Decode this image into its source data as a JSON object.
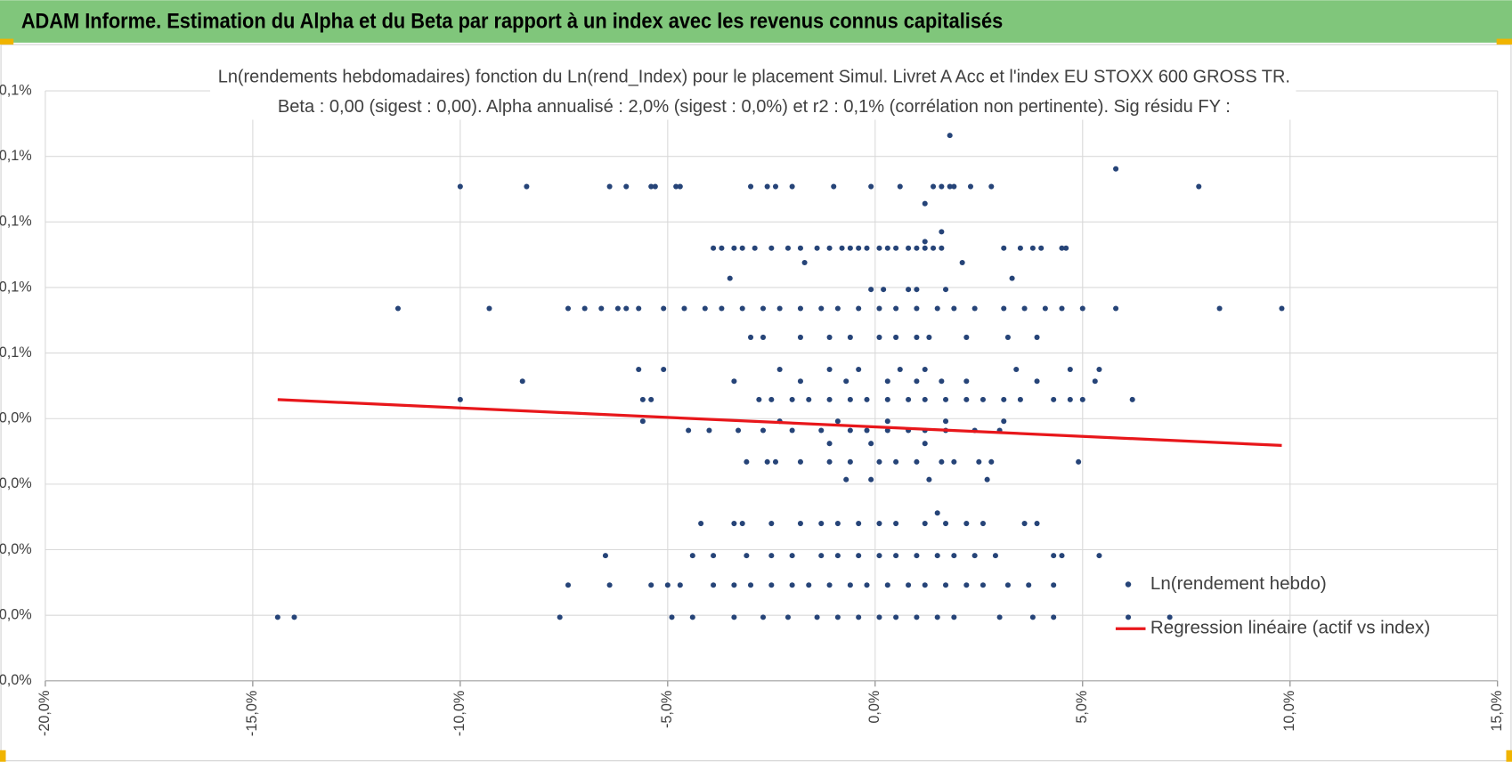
{
  "header": {
    "title": "ADAM Informe. Estimation du Alpha et du Beta par rapport à un index avec les revenus connus capitalisés"
  },
  "chart_data": {
    "type": "scatter",
    "title": "Ln(rendements hebdomadaires) fonction du Ln(rend_Index) pour le placement Simul. Livret A Acc et l'index EU STOXX 600 GROSS TR.",
    "subtitle": "Beta : 0,00 (sigest : 0,00). Alpha annualisé : 2,0% (sigest : 0,0%) et r2 : 0,1% (corrélation non pertinente). Sig résidu FY :",
    "xlim": [
      -20,
      15
    ],
    "xticks": [
      {
        "value": -20,
        "label": "-20,0%"
      },
      {
        "value": -15,
        "label": "-15,0%"
      },
      {
        "value": -10,
        "label": "-10,0%"
      },
      {
        "value": -5,
        "label": "-5,0%"
      },
      {
        "value": 0,
        "label": "0,0%"
      },
      {
        "value": 5,
        "label": "5,0%"
      },
      {
        "value": 10,
        "label": "10,0%"
      },
      {
        "value": 15,
        "label": "15,0%"
      }
    ],
    "ylim": [
      0,
      0.09
    ],
    "yticks": [
      {
        "value": 0,
        "label": "0,0%"
      },
      {
        "value": 0.01,
        "label": "0,0%"
      },
      {
        "value": 0.02,
        "label": "0,0%"
      },
      {
        "value": 0.03,
        "label": "0,0%"
      },
      {
        "value": 0.04,
        "label": "0,0%"
      },
      {
        "value": 0.05,
        "label": "0,1%"
      },
      {
        "value": 0.06,
        "label": "0,1%"
      },
      {
        "value": 0.07,
        "label": "0,1%"
      },
      {
        "value": 0.08,
        "label": "0,1%"
      },
      {
        "value": 0.09,
        "label": "0,1%"
      }
    ],
    "grid": true,
    "legend": "lower right",
    "series": [
      {
        "name": "Ln(rendement hebdo)",
        "color": "#264478",
        "mode": "markers",
        "x": [
          1.8,
          5.8,
          -10.0,
          -8.4,
          -6.4,
          -6.0,
          -5.4,
          -5.3,
          -4.8,
          -4.7,
          -3.0,
          -2.6,
          -2.4,
          -2.0,
          -1.0,
          -0.1,
          0.6,
          1.4,
          1.6,
          1.8,
          1.9,
          2.3,
          2.8,
          7.8,
          1.2,
          1.6,
          1.2,
          -3.9,
          -3.7,
          -3.4,
          -3.2,
          -2.9,
          -2.5,
          -2.1,
          -1.8,
          -1.4,
          -1.1,
          -0.8,
          -0.6,
          -0.4,
          -0.2,
          0.1,
          0.3,
          0.5,
          0.8,
          1.0,
          1.2,
          1.4,
          1.6,
          3.1,
          3.5,
          3.8,
          4.0,
          4.5,
          4.6,
          -1.7,
          2.1,
          -3.5,
          3.3,
          -0.1,
          0.2,
          0.8,
          1.0,
          1.7,
          -11.5,
          -9.3,
          -7.4,
          -7.0,
          -6.6,
          -6.2,
          -6.0,
          -5.7,
          -5.1,
          -4.6,
          -4.1,
          -3.7,
          -3.2,
          -2.7,
          -2.3,
          -1.8,
          -1.3,
          -0.9,
          -0.4,
          0.1,
          0.5,
          1.0,
          1.5,
          1.9,
          2.4,
          3.1,
          3.6,
          4.1,
          4.5,
          5.0,
          5.8,
          8.3,
          9.8,
          -3.0,
          -2.7,
          -1.8,
          -1.1,
          -0.6,
          0.1,
          0.5,
          1.0,
          1.3,
          2.2,
          3.2,
          3.9,
          -5.7,
          -5.1,
          -2.3,
          -1.1,
          -0.4,
          0.6,
          1.2,
          3.4,
          4.7,
          5.4,
          -8.5,
          -3.4,
          -1.8,
          -0.7,
          0.3,
          1.0,
          1.6,
          2.2,
          3.9,
          5.3,
          -10.0,
          -5.6,
          -5.4,
          -2.8,
          -2.5,
          -2.0,
          -1.6,
          -1.1,
          -0.6,
          -0.2,
          0.3,
          0.8,
          1.2,
          1.7,
          2.2,
          2.6,
          3.1,
          3.5,
          4.3,
          4.7,
          5.0,
          6.2,
          -5.6,
          -2.3,
          -0.9,
          0.3,
          1.7,
          3.1,
          -4.5,
          -4.0,
          -3.3,
          -2.7,
          -2.0,
          -1.3,
          -0.6,
          -0.2,
          0.3,
          0.8,
          1.2,
          1.7,
          2.4,
          3.0,
          -1.1,
          -0.1,
          1.2,
          -3.1,
          -2.6,
          -2.4,
          -1.8,
          -1.1,
          -0.6,
          0.1,
          0.5,
          1.0,
          1.6,
          1.9,
          2.5,
          2.8,
          4.9,
          -0.7,
          -0.1,
          1.3,
          2.7,
          1.5,
          -4.2,
          -3.4,
          -3.2,
          -2.5,
          -1.8,
          -1.3,
          -0.9,
          -0.4,
          0.1,
          0.5,
          1.2,
          1.7,
          2.2,
          2.6,
          3.6,
          3.9,
          -6.5,
          -4.4,
          -3.9,
          -3.1,
          -2.5,
          -2.0,
          -1.3,
          -0.9,
          -0.4,
          0.1,
          0.5,
          1.0,
          1.5,
          1.9,
          2.4,
          2.9,
          4.3,
          4.5,
          5.4,
          -7.4,
          -6.4,
          -5.4,
          -5.0,
          -4.7,
          -3.9,
          -3.4,
          -3.0,
          -2.5,
          -2.0,
          -1.6,
          -1.1,
          -0.6,
          -0.2,
          0.3,
          0.8,
          1.2,
          1.7,
          2.2,
          2.6,
          3.2,
          3.7,
          4.3,
          -14.4,
          -14.0,
          -7.6,
          -4.9,
          -4.4,
          -3.4,
          -2.7,
          -2.1,
          -1.4,
          -0.9,
          -0.4,
          0.1,
          0.5,
          1.0,
          1.5,
          1.9,
          3.0,
          3.8,
          4.3,
          6.1,
          7.1
        ],
        "values": [
          0.0832,
          0.0781,
          0.0754,
          0.0754,
          0.0754,
          0.0754,
          0.0754,
          0.0754,
          0.0754,
          0.0754,
          0.0754,
          0.0754,
          0.0754,
          0.0754,
          0.0754,
          0.0754,
          0.0754,
          0.0754,
          0.0754,
          0.0754,
          0.0754,
          0.0754,
          0.0754,
          0.0754,
          0.0728,
          0.0685,
          0.067,
          0.066,
          0.066,
          0.066,
          0.066,
          0.066,
          0.066,
          0.066,
          0.066,
          0.066,
          0.066,
          0.066,
          0.066,
          0.066,
          0.066,
          0.066,
          0.066,
          0.066,
          0.066,
          0.066,
          0.066,
          0.066,
          0.066,
          0.066,
          0.066,
          0.066,
          0.066,
          0.066,
          0.066,
          0.0638,
          0.0638,
          0.0614,
          0.0614,
          0.0597,
          0.0597,
          0.0597,
          0.0597,
          0.0597,
          0.0568,
          0.0568,
          0.0568,
          0.0568,
          0.0568,
          0.0568,
          0.0568,
          0.0568,
          0.0568,
          0.0568,
          0.0568,
          0.0568,
          0.0568,
          0.0568,
          0.0568,
          0.0568,
          0.0568,
          0.0568,
          0.0568,
          0.0568,
          0.0568,
          0.0568,
          0.0568,
          0.0568,
          0.0568,
          0.0568,
          0.0568,
          0.0568,
          0.0568,
          0.0568,
          0.0568,
          0.0568,
          0.0568,
          0.0524,
          0.0524,
          0.0524,
          0.0524,
          0.0524,
          0.0524,
          0.0524,
          0.0524,
          0.0524,
          0.0524,
          0.0524,
          0.0524,
          0.0475,
          0.0475,
          0.0475,
          0.0475,
          0.0475,
          0.0475,
          0.0475,
          0.0475,
          0.0475,
          0.0475,
          0.0457,
          0.0457,
          0.0457,
          0.0457,
          0.0457,
          0.0457,
          0.0457,
          0.0457,
          0.0457,
          0.0457,
          0.0429,
          0.0429,
          0.0429,
          0.0429,
          0.0429,
          0.0429,
          0.0429,
          0.0429,
          0.0429,
          0.0429,
          0.0429,
          0.0429,
          0.0429,
          0.0429,
          0.0429,
          0.0429,
          0.0429,
          0.0429,
          0.0429,
          0.0429,
          0.0429,
          0.0429,
          0.0396,
          0.0396,
          0.0396,
          0.0396,
          0.0396,
          0.0396,
          0.0382,
          0.0382,
          0.0382,
          0.0382,
          0.0382,
          0.0382,
          0.0382,
          0.0382,
          0.0382,
          0.0382,
          0.0382,
          0.0382,
          0.0382,
          0.0382,
          0.0362,
          0.0362,
          0.0362,
          0.0334,
          0.0334,
          0.0334,
          0.0334,
          0.0334,
          0.0334,
          0.0334,
          0.0334,
          0.0334,
          0.0334,
          0.0334,
          0.0334,
          0.0334,
          0.0334,
          0.0307,
          0.0307,
          0.0307,
          0.0307,
          0.0256,
          0.024,
          0.024,
          0.024,
          0.024,
          0.024,
          0.024,
          0.024,
          0.024,
          0.024,
          0.024,
          0.024,
          0.024,
          0.024,
          0.024,
          0.024,
          0.024,
          0.0191,
          0.0191,
          0.0191,
          0.0191,
          0.0191,
          0.0191,
          0.0191,
          0.0191,
          0.0191,
          0.0191,
          0.0191,
          0.0191,
          0.0191,
          0.0191,
          0.0191,
          0.0191,
          0.0191,
          0.0191,
          0.0191,
          0.0146,
          0.0146,
          0.0146,
          0.0146,
          0.0146,
          0.0146,
          0.0146,
          0.0146,
          0.0146,
          0.0146,
          0.0146,
          0.0146,
          0.0146,
          0.0146,
          0.0146,
          0.0146,
          0.0146,
          0.0146,
          0.0146,
          0.0146,
          0.0146,
          0.0146,
          0.0146,
          0.0097,
          0.0097,
          0.0097,
          0.0097,
          0.0097,
          0.0097,
          0.0097,
          0.0097,
          0.0097,
          0.0097,
          0.0097,
          0.0097,
          0.0097,
          0.0097,
          0.0097,
          0.0097,
          0.0097,
          0.0097,
          0.0097,
          0.0097,
          0.0097
        ]
      },
      {
        "name": "Regression linéaire (actif vs index)",
        "color": "#e8171b",
        "mode": "line",
        "x": [
          -14.4,
          9.8
        ],
        "values": [
          0.0429,
          0.0359
        ]
      }
    ]
  }
}
